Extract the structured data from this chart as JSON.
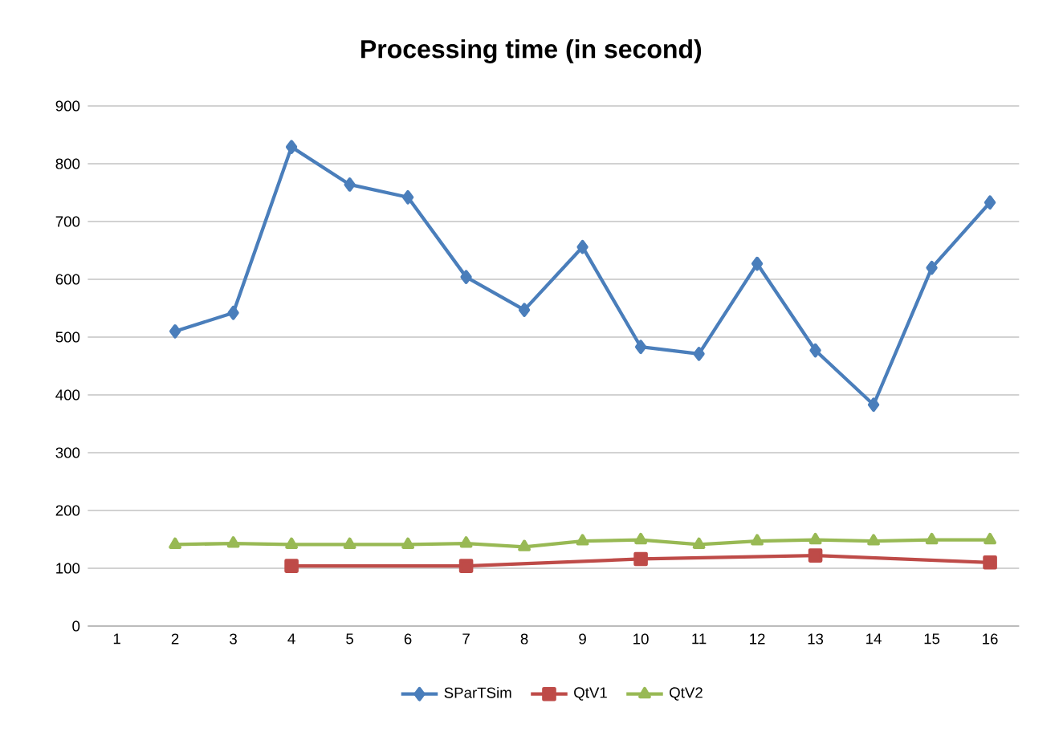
{
  "chart_data": {
    "type": "line",
    "title": "Processing time (in second)",
    "categories": [
      "1",
      "2",
      "3",
      "4",
      "5",
      "6",
      "7",
      "8",
      "9",
      "10",
      "11",
      "12",
      "13",
      "14",
      "15",
      "16"
    ],
    "series": [
      {
        "name": "SParTSim",
        "color": "#4a7ebb",
        "marker": "diamond",
        "values": [
          null,
          510,
          542,
          829,
          764,
          742,
          604,
          547,
          656,
          483,
          471,
          627,
          477,
          383,
          620,
          733
        ]
      },
      {
        "name": "QtV1",
        "color": "#be4b48",
        "marker": "square",
        "values": [
          null,
          null,
          null,
          104,
          null,
          null,
          104,
          null,
          null,
          116,
          null,
          null,
          122,
          null,
          null,
          110
        ]
      },
      {
        "name": "QtV2",
        "color": "#98b954",
        "marker": "triangle",
        "values": [
          null,
          141,
          143,
          141,
          141,
          141,
          143,
          137,
          147,
          149,
          141,
          147,
          149,
          147,
          149,
          149
        ]
      }
    ],
    "ylim": [
      0,
      900
    ],
    "yticks": [
      0,
      100,
      200,
      300,
      400,
      500,
      600,
      700,
      800,
      900
    ],
    "grid": "y",
    "legend": "bottom",
    "line_style": "solid"
  }
}
